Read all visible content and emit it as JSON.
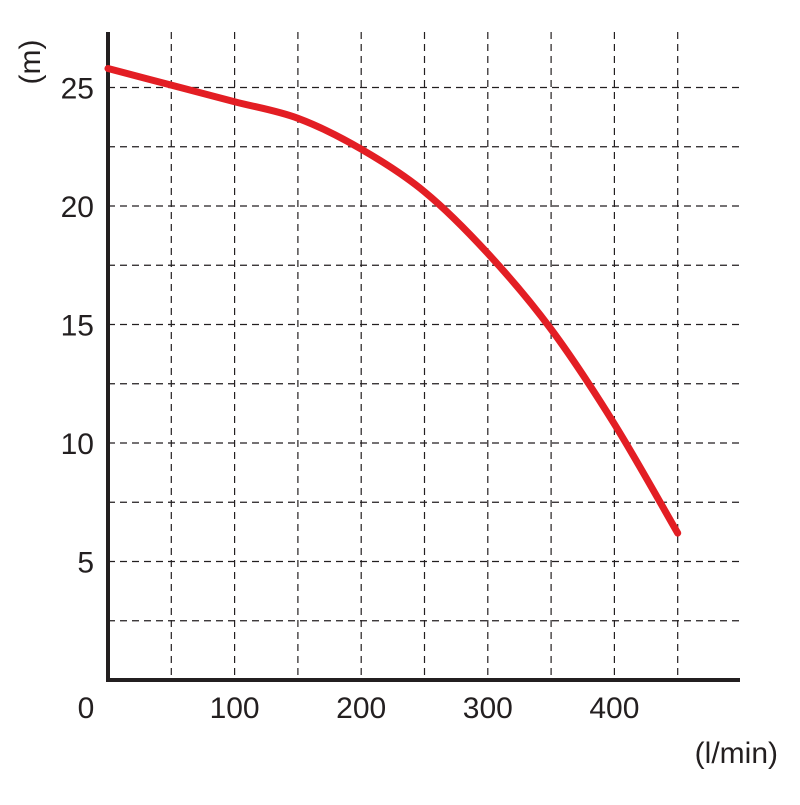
{
  "chart_data": {
    "type": "line",
    "title": "",
    "xlabel": "(l/min)",
    "ylabel": "(m)",
    "origin_label": "0",
    "xlim": [
      0,
      500
    ],
    "ylim": [
      0,
      27.5
    ],
    "x_ticks": [
      100,
      200,
      300,
      400
    ],
    "x_tick_labels": [
      "100",
      "200",
      "300",
      "400"
    ],
    "y_ticks": [
      5,
      10,
      15,
      20,
      25
    ],
    "y_tick_labels": [
      "5",
      "10",
      "15",
      "20",
      "25"
    ],
    "x_grid": [
      50,
      100,
      150,
      200,
      250,
      300,
      350,
      400,
      450
    ],
    "y_grid": [
      2.5,
      5,
      7.5,
      10,
      12.5,
      15,
      17.5,
      20,
      22.5,
      25
    ],
    "grid": true,
    "grid_style": "dashed",
    "legend": false,
    "series": [
      {
        "color": "#e31e24",
        "x": [
          0,
          50,
          100,
          150,
          200,
          250,
          300,
          350,
          400,
          450
        ],
        "y": [
          25.8,
          25.1,
          24.4,
          23.7,
          22.4,
          20.6,
          18.0,
          14.8,
          10.8,
          6.2
        ]
      }
    ]
  }
}
